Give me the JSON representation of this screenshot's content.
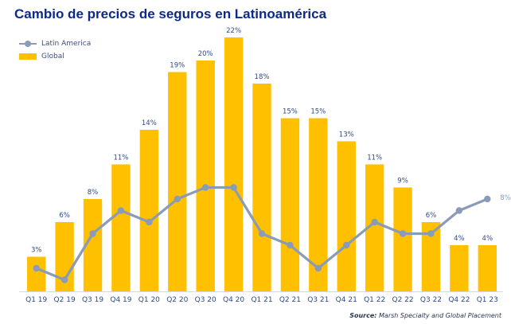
{
  "chart_data": {
    "type": "bar",
    "title": "Cambio de precios de seguros en Latinoamérica",
    "xlabel": "",
    "ylabel": "",
    "ylim": [
      0,
      22
    ],
    "grid": false,
    "legend_position": "top-left",
    "categories": [
      "Q1 19",
      "Q2 19",
      "Q3 19",
      "Q4 19",
      "Q1 20",
      "Q2 20",
      "Q3 20",
      "Q4 20",
      "Q1 21",
      "Q2 21",
      "Q3 21",
      "Q4 21",
      "Q1 22",
      "Q2 22",
      "Q3 22",
      "Q4 22",
      "Q1 23"
    ],
    "series": [
      {
        "name": "Global",
        "type": "bar",
        "color": "#ffc000",
        "values": [
          3,
          6,
          8,
          11,
          14,
          19,
          20,
          22,
          18,
          15,
          15,
          13,
          11,
          9,
          6,
          4,
          4
        ],
        "labels": [
          "3%",
          "6%",
          "8%",
          "11%",
          "14%",
          "19%",
          "20%",
          "22%",
          "18%",
          "15%",
          "15%",
          "13%",
          "11%",
          "9%",
          "6%",
          "4%",
          "4%"
        ]
      },
      {
        "name": "Latin America",
        "type": "line",
        "color": "#8a9bb8",
        "values": [
          2,
          1,
          5,
          7,
          6,
          8,
          9,
          9,
          5,
          4,
          2,
          4,
          6,
          5,
          5,
          7,
          8
        ],
        "end_label": "8%"
      }
    ],
    "source_label": "Source:",
    "source_text": "Marsh Specialty and Global Placement"
  }
}
